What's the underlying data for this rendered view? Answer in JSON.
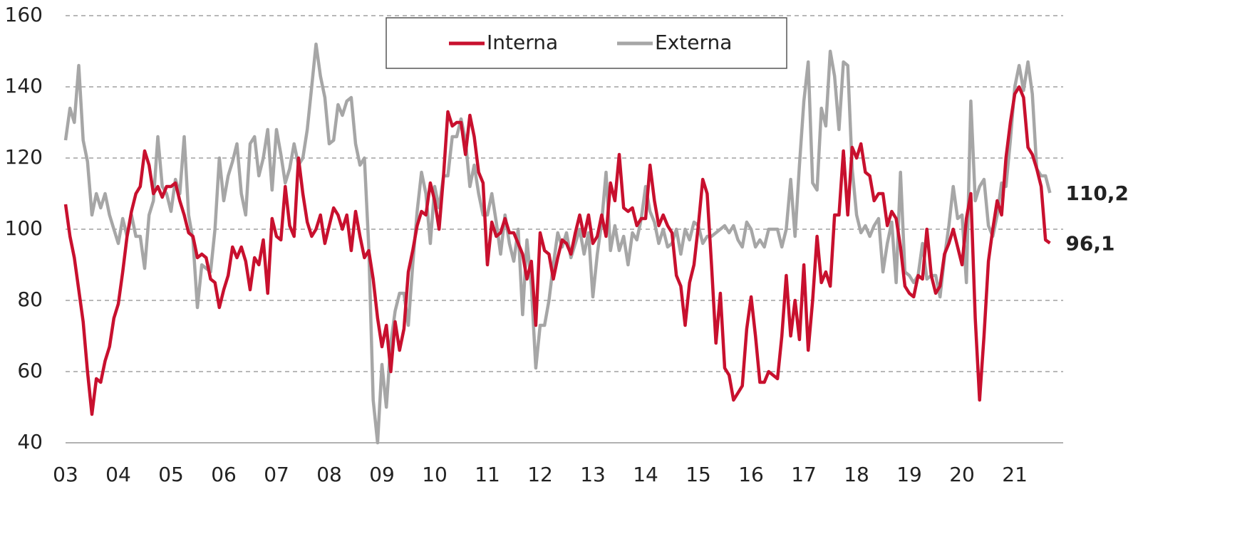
{
  "chart_data": {
    "type": "line",
    "categories": [
      "03",
      null,
      null,
      null,
      null,
      null,
      null,
      null,
      null,
      null,
      null,
      null,
      "04",
      null,
      null,
      null,
      null,
      null,
      null,
      null,
      null,
      null,
      null,
      null,
      "05",
      null,
      null,
      null,
      null,
      null,
      null,
      null,
      null,
      null,
      null,
      null,
      "06",
      null,
      null,
      null,
      null,
      null,
      null,
      null,
      null,
      null,
      null,
      null,
      "07",
      null,
      null,
      null,
      null,
      null,
      null,
      null,
      null,
      null,
      null,
      null,
      "08",
      null,
      null,
      null,
      null,
      null,
      null,
      null,
      null,
      null,
      null,
      null,
      "09",
      null,
      null,
      null,
      null,
      null,
      null,
      null,
      null,
      null,
      null,
      null,
      "10",
      null,
      null,
      null,
      null,
      null,
      null,
      null,
      null,
      null,
      null,
      null,
      "11",
      null,
      null,
      null,
      null,
      null,
      null,
      null,
      null,
      null,
      null,
      null,
      "12",
      null,
      null,
      null,
      null,
      null,
      null,
      null,
      null,
      null,
      null,
      null,
      "13",
      null,
      null,
      null,
      null,
      null,
      null,
      null,
      null,
      null,
      null,
      null,
      "14",
      null,
      null,
      null,
      null,
      null,
      null,
      null,
      null,
      null,
      null,
      null,
      "15",
      null,
      null,
      null,
      null,
      null,
      null,
      null,
      null,
      null,
      null,
      null,
      "16",
      null,
      null,
      null,
      null,
      null,
      null,
      null,
      null,
      null,
      null,
      null,
      "17",
      null,
      null,
      null,
      null,
      null,
      null,
      null,
      null,
      null,
      null,
      null,
      "18",
      null,
      null,
      null,
      null,
      null,
      null,
      null,
      null,
      null,
      null,
      null,
      "19",
      null,
      null,
      null,
      null,
      null,
      null,
      null,
      null,
      null,
      null,
      null,
      "20",
      null,
      null,
      null,
      null,
      null,
      null,
      null,
      null,
      null,
      null,
      null,
      "21",
      null,
      null,
      null,
      null,
      null,
      null,
      null,
      null
    ],
    "series": [
      {
        "name": "Interna",
        "color": "#c8102e",
        "values": [
          107,
          98,
          92,
          83,
          74,
          60,
          48,
          58,
          57,
          63,
          67,
          75,
          79,
          88,
          98,
          105,
          110,
          112,
          122,
          118,
          110,
          112,
          109,
          112,
          112,
          113,
          108,
          104,
          99,
          98,
          92,
          93,
          92,
          86,
          85,
          78,
          83,
          87,
          95,
          92,
          95,
          91,
          83,
          92,
          90,
          97,
          82,
          103,
          98,
          97,
          112,
          101,
          98,
          120,
          110,
          102,
          98,
          100,
          104,
          96,
          101,
          106,
          104,
          100,
          104,
          94,
          105,
          98,
          92,
          94,
          86,
          75,
          67,
          73,
          60,
          74,
          66,
          72,
          88,
          94,
          101,
          105,
          104,
          113,
          108,
          100,
          115,
          133,
          129,
          130,
          130,
          121,
          132,
          126,
          116,
          113,
          90,
          102,
          98,
          99,
          103,
          99,
          99,
          96,
          93,
          86,
          91,
          73,
          99,
          94,
          93,
          86,
          92,
          97,
          96,
          93,
          99,
          104,
          98,
          104,
          96,
          98,
          104,
          98,
          113,
          108,
          121,
          106,
          105,
          106,
          101,
          103,
          103,
          118,
          108,
          101,
          104,
          101,
          99,
          87,
          84,
          73,
          85,
          90,
          101,
          114,
          110,
          90,
          68,
          82,
          61,
          59,
          52,
          54,
          56,
          72,
          81,
          70,
          57,
          57,
          60,
          59,
          58,
          70,
          87,
          70,
          80,
          69,
          90,
          66,
          80,
          98,
          85,
          88,
          84,
          104,
          104,
          122,
          104,
          123,
          120,
          124,
          116,
          115,
          108,
          110,
          110,
          101,
          105,
          103,
          95,
          84,
          82,
          81,
          87,
          86,
          100,
          87,
          82,
          84,
          93,
          96,
          100,
          95,
          90,
          103,
          110,
          75,
          52,
          70,
          91,
          100,
          108,
          104,
          120,
          130,
          138,
          140,
          137,
          123,
          121,
          117,
          112,
          97,
          96.1
        ],
        "value_labels": [
          null,
          null,
          null,
          null,
          null,
          null,
          null,
          null,
          null,
          null,
          null,
          null,
          null,
          null,
          null,
          null,
          null,
          null,
          null,
          null,
          null,
          null,
          null,
          null,
          null,
          null,
          null,
          null,
          null,
          null,
          null,
          null,
          null,
          null,
          null,
          null,
          null,
          null,
          null,
          null,
          null,
          null,
          null,
          null,
          null,
          null,
          null,
          null,
          null,
          null,
          null,
          null,
          null,
          null,
          null,
          null,
          null,
          null,
          null,
          null,
          null,
          null,
          null,
          null,
          null,
          null,
          null,
          null,
          null,
          null,
          null,
          null,
          null,
          null,
          null,
          null,
          null,
          null,
          null,
          null,
          null,
          null,
          null,
          null,
          null,
          null,
          null,
          null,
          null,
          null,
          null,
          null,
          null,
          null,
          null,
          null,
          null,
          null,
          null,
          null,
          null,
          null,
          null,
          null,
          null,
          null,
          null,
          null,
          null,
          null,
          null,
          null,
          null,
          null,
          null,
          null,
          null,
          null,
          null,
          null,
          null,
          null,
          null,
          null,
          null,
          null,
          null,
          null,
          null,
          null,
          null,
          null,
          null,
          null,
          null,
          null,
          null,
          null,
          null,
          null,
          null,
          null,
          null,
          null,
          null,
          null,
          null,
          null,
          null,
          null,
          null,
          null,
          null,
          null,
          null,
          null,
          null,
          null,
          null,
          null,
          null,
          null,
          null,
          null,
          null,
          null,
          null,
          null,
          null,
          null,
          null,
          null,
          null,
          null,
          null,
          null,
          null,
          null,
          null,
          null,
          null,
          null,
          null,
          null,
          null,
          null,
          null,
          null,
          null,
          null,
          null,
          null,
          null,
          null,
          null,
          null,
          null,
          null,
          null,
          null,
          null,
          null,
          null,
          null,
          null,
          null,
          null,
          null,
          null,
          null,
          null,
          null,
          null,
          null,
          null,
          null,
          null,
          null,
          null,
          null,
          null,
          null,
          null,
          null,
          "96,1"
        ]
      },
      {
        "name": "Externa",
        "color": "#a6a6a6",
        "values": [
          125,
          134,
          130,
          146,
          125,
          119,
          104,
          110,
          106,
          110,
          104,
          100,
          96,
          103,
          98,
          104,
          98,
          98,
          89,
          104,
          108,
          126,
          112,
          110,
          105,
          114,
          110,
          126,
          104,
          97,
          78,
          90,
          89,
          88,
          100,
          120,
          108,
          115,
          119,
          124,
          110,
          104,
          124,
          126,
          115,
          120,
          128,
          111,
          128,
          121,
          113,
          117,
          124,
          118,
          120,
          128,
          140,
          152,
          143,
          137,
          124,
          125,
          135,
          132,
          136,
          137,
          124,
          118,
          120,
          95,
          52,
          40,
          62,
          50,
          68,
          77,
          82,
          82,
          73,
          90,
          105,
          116,
          110,
          96,
          112,
          106,
          115,
          115,
          126,
          126,
          131,
          125,
          112,
          118,
          110,
          104,
          104,
          110,
          102,
          93,
          104,
          96,
          91,
          100,
          76,
          97,
          84,
          61,
          73,
          73,
          80,
          90,
          99,
          95,
          99,
          92,
          96,
          100,
          93,
          99,
          81,
          93,
          102,
          116,
          94,
          101,
          94,
          98,
          90,
          99,
          97,
          103,
          112,
          105,
          102,
          96,
          100,
          95,
          96,
          100,
          93,
          100,
          97,
          102,
          101,
          96,
          98,
          98,
          99,
          100,
          101,
          99,
          101,
          97,
          95,
          102,
          100,
          95,
          97,
          95,
          100,
          100,
          100,
          95,
          100,
          114,
          98,
          118,
          136,
          147,
          113,
          111,
          134,
          129,
          150,
          143,
          128,
          147,
          146,
          117,
          104,
          99,
          101,
          98,
          101,
          103,
          88,
          96,
          102,
          85,
          116,
          88,
          87,
          85,
          87,
          96,
          86,
          87,
          87,
          81,
          92,
          101,
          112,
          103,
          104,
          85,
          136,
          108,
          112,
          114,
          101,
          98,
          104,
          113,
          112,
          125,
          140,
          146,
          139,
          147,
          138,
          117,
          115,
          115,
          110.2
        ],
        "value_labels": [
          null,
          null,
          null,
          null,
          null,
          null,
          null,
          null,
          null,
          null,
          null,
          null,
          null,
          null,
          null,
          null,
          null,
          null,
          null,
          null,
          null,
          null,
          null,
          null,
          null,
          null,
          null,
          null,
          null,
          null,
          null,
          null,
          null,
          null,
          null,
          null,
          null,
          null,
          null,
          null,
          null,
          null,
          null,
          null,
          null,
          null,
          null,
          null,
          null,
          null,
          null,
          null,
          null,
          null,
          null,
          null,
          null,
          null,
          null,
          null,
          null,
          null,
          null,
          null,
          null,
          null,
          null,
          null,
          null,
          null,
          null,
          null,
          null,
          null,
          null,
          null,
          null,
          null,
          null,
          null,
          null,
          null,
          null,
          null,
          null,
          null,
          null,
          null,
          null,
          null,
          null,
          null,
          null,
          null,
          null,
          null,
          null,
          null,
          null,
          null,
          null,
          null,
          null,
          null,
          null,
          null,
          null,
          null,
          null,
          null,
          null,
          null,
          null,
          null,
          null,
          null,
          null,
          null,
          null,
          null,
          null,
          null,
          null,
          null,
          null,
          null,
          null,
          null,
          null,
          null,
          null,
          null,
          null,
          null,
          null,
          null,
          null,
          null,
          null,
          null,
          null,
          null,
          null,
          null,
          null,
          null,
          null,
          null,
          null,
          null,
          null,
          null,
          null,
          null,
          null,
          null,
          null,
          null,
          null,
          null,
          null,
          null,
          null,
          null,
          null,
          null,
          null,
          null,
          null,
          null,
          null,
          null,
          null,
          null,
          null,
          null,
          null,
          null,
          null,
          null,
          null,
          null,
          null,
          null,
          null,
          null,
          null,
          null,
          null,
          null,
          null,
          null,
          null,
          null,
          null,
          null,
          null,
          null,
          null,
          null,
          null,
          null,
          null,
          null,
          null,
          null,
          null,
          null,
          null,
          null,
          null,
          null,
          null,
          null,
          null,
          null,
          null,
          null,
          null,
          null,
          null,
          null,
          null,
          null,
          "110,2"
        ]
      }
    ],
    "ylim": [
      40,
      160
    ],
    "yticks": [
      40,
      60,
      80,
      100,
      120,
      140,
      160
    ],
    "grid": true,
    "legend": "top"
  }
}
